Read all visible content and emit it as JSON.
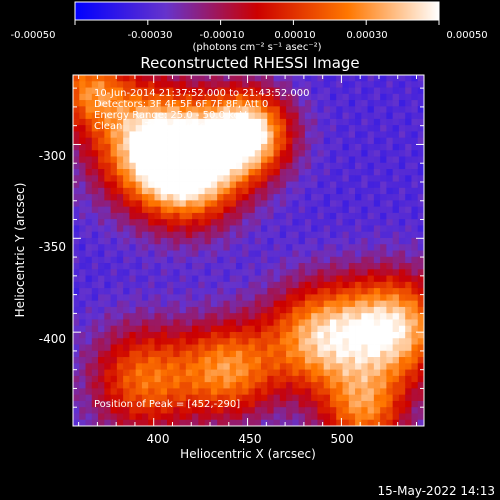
{
  "chart_data": {
    "type": "heatmap",
    "title": "Reconstructed RHESSI Image",
    "xlabel": "Heliocentric X (arcsec)",
    "ylabel": "Heliocentric Y (arcsec)",
    "xlim": [
      357,
      544
    ],
    "ylim": [
      -450,
      -263
    ],
    "x_ticks": [
      "400",
      "450",
      "500"
    ],
    "x_tick_values": [
      400,
      450,
      500
    ],
    "y_ticks": [
      "-300",
      "-350",
      "-400"
    ],
    "y_tick_values": [
      -300,
      -350,
      -400
    ],
    "colorbar": {
      "range": [
        -0.0005,
        0.0005
      ],
      "tick_labels": [
        "-0.00050",
        "-0.00030",
        "-0.00010",
        "0.00010",
        "0.00030",
        "0.00050"
      ],
      "tick_values": [
        -0.0005,
        -0.0003,
        -0.0001,
        0.0001,
        0.0003,
        0.0005
      ],
      "unit_label": "(photons cm⁻² s⁻¹ asec⁻²)",
      "colors": [
        "#0000ff",
        "#6633cc",
        "#cc0000",
        "#ff7700",
        "#ffffff"
      ]
    },
    "annotations": {
      "time": "10-Jun-2014 21:37:52.000 to 21:43:52.000",
      "detectors": "Detectors: 3F 4F 5F 6F 7F 8F, Att 0",
      "energy": "Energy Range: 25.0 - 50.0 keV",
      "method": "Clean",
      "counts": "Total counts: 1.09e+04",
      "peak": "Position of Peak = [452,-290]"
    },
    "peak": {
      "x": 452,
      "y": -290
    },
    "sources": [
      {
        "x": 418,
        "y": -313,
        "strength": 1.0,
        "spread": 20
      },
      {
        "x": 450,
        "y": -294,
        "strength": 0.95,
        "spread": 16
      },
      {
        "x": 395,
        "y": -296,
        "strength": 0.7,
        "spread": 22
      },
      {
        "x": 528,
        "y": -398,
        "strength": 0.85,
        "spread": 20
      },
      {
        "x": 488,
        "y": -403,
        "strength": 0.75,
        "spread": 20
      },
      {
        "x": 440,
        "y": -420,
        "strength": 0.65,
        "spread": 18
      },
      {
        "x": 395,
        "y": -425,
        "strength": 0.6,
        "spread": 20
      },
      {
        "x": 365,
        "y": -270,
        "strength": 0.55,
        "spread": 14
      },
      {
        "x": 512,
        "y": -442,
        "strength": 0.6,
        "spread": 16
      }
    ]
  },
  "footer": {
    "date": "15-May-2022 14:13"
  }
}
